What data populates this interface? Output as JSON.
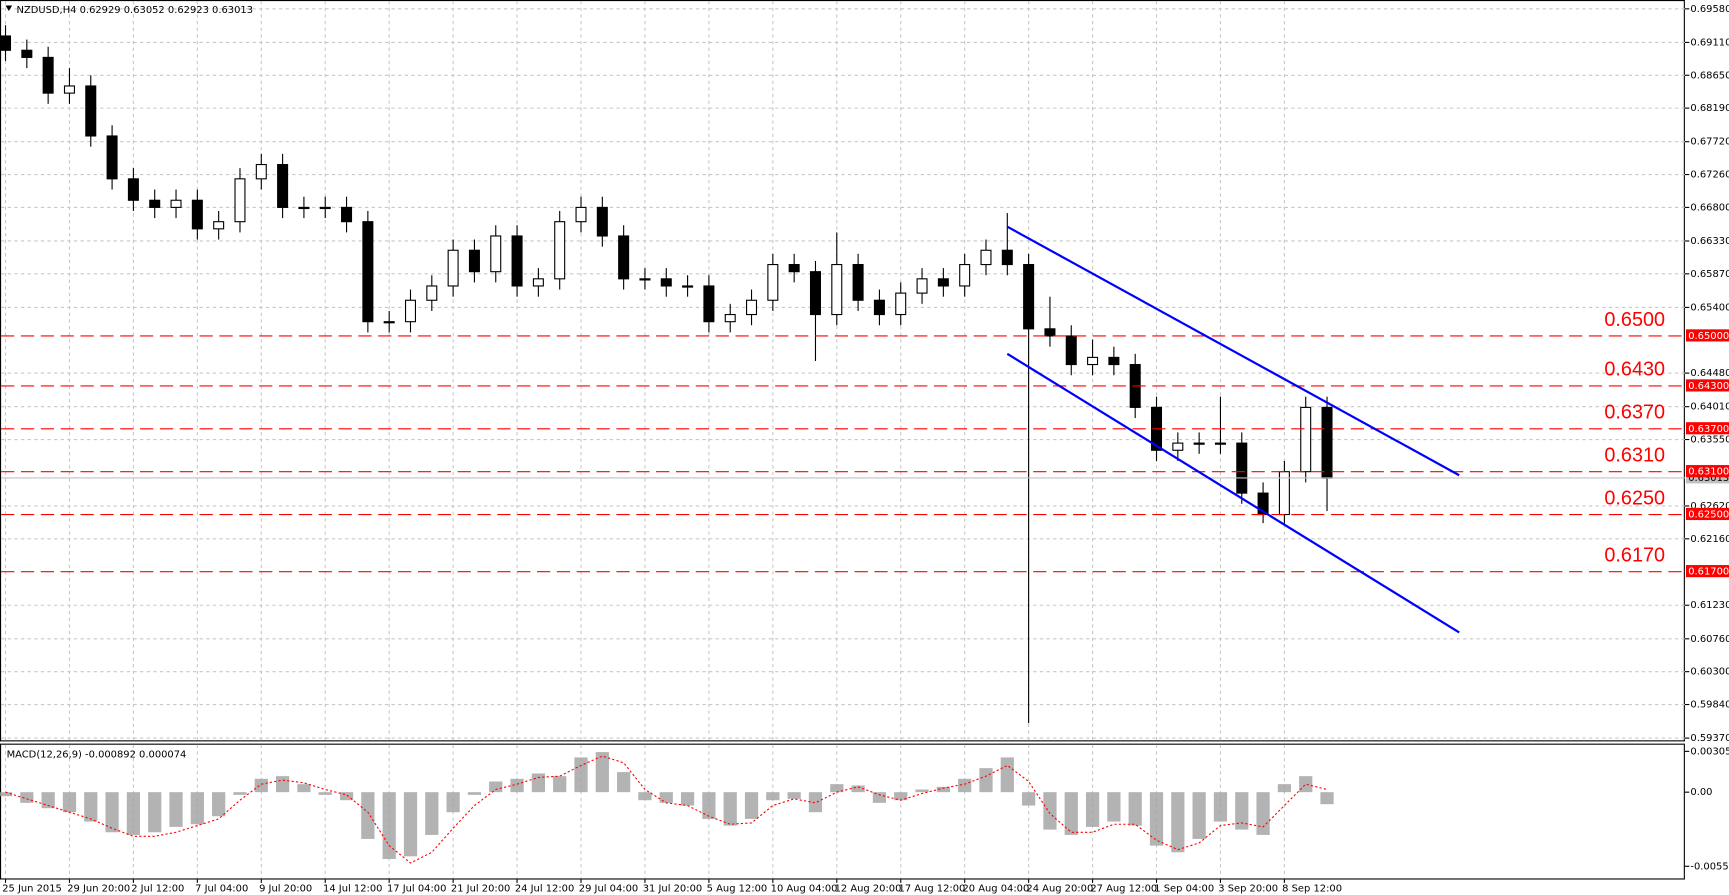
{
  "chart_data": [
    {
      "type": "candlestick",
      "title": "NZDUSD,H4  0.62929 0.63052 0.62923 0.63013",
      "categories": [
        "25 Jun 2015",
        null,
        null,
        "29 Jun 20:00",
        null,
        null,
        "2 Jul 12:00",
        null,
        null,
        "7 Jul 04:00",
        null,
        null,
        "9 Jul 20:00",
        null,
        null,
        "14 Jul 12:00",
        null,
        null,
        "17 Jul 04:00",
        null,
        null,
        "21 Jul 20:00",
        null,
        null,
        "24 Jul 12:00",
        null,
        null,
        "29 Jul 04:00",
        null,
        null,
        "31 Jul 20:00",
        null,
        null,
        "5 Aug 12:00",
        null,
        null,
        "10 Aug 04:00",
        null,
        null,
        "12 Aug 20:00",
        null,
        null,
        "17 Aug 12:00",
        null,
        null,
        "20 Aug 04:00",
        null,
        null,
        "24 Aug 20:00",
        null,
        null,
        "27 Aug 12:00",
        null,
        null,
        "1 Sep 04:00",
        null,
        null,
        "3 Sep 20:00",
        null,
        null,
        "8 Sep 12:00",
        null,
        null
      ],
      "candles": [
        [
          0.692,
          0.6935,
          0.6885,
          0.69
        ],
        [
          0.69,
          0.6915,
          0.6875,
          0.689
        ],
        [
          0.689,
          0.6905,
          0.6825,
          0.684
        ],
        [
          0.684,
          0.6875,
          0.6825,
          0.685
        ],
        [
          0.685,
          0.6865,
          0.6765,
          0.678
        ],
        [
          0.678,
          0.6795,
          0.6705,
          0.672
        ],
        [
          0.672,
          0.6735,
          0.6675,
          0.669
        ],
        [
          0.669,
          0.6705,
          0.6665,
          0.668
        ],
        [
          0.668,
          0.6705,
          0.6665,
          0.669
        ],
        [
          0.669,
          0.6705,
          0.6635,
          0.665
        ],
        [
          0.665,
          0.6675,
          0.6635,
          0.666
        ],
        [
          0.666,
          0.6735,
          0.6645,
          0.672
        ],
        [
          0.672,
          0.6755,
          0.6705,
          0.674
        ],
        [
          0.674,
          0.6755,
          0.6665,
          0.668
        ],
        [
          0.668,
          0.6695,
          0.6665,
          0.668
        ],
        [
          0.668,
          0.6695,
          0.6665,
          0.668
        ],
        [
          0.668,
          0.6695,
          0.6645,
          0.666
        ],
        [
          0.666,
          0.6675,
          0.6505,
          0.652
        ],
        [
          0.652,
          0.6535,
          0.6505,
          0.652
        ],
        [
          0.652,
          0.6565,
          0.6505,
          0.655
        ],
        [
          0.655,
          0.6585,
          0.6535,
          0.657
        ],
        [
          0.657,
          0.6635,
          0.6555,
          0.662
        ],
        [
          0.662,
          0.6635,
          0.6575,
          0.659
        ],
        [
          0.659,
          0.6655,
          0.6575,
          0.664
        ],
        [
          0.664,
          0.6655,
          0.6555,
          0.657
        ],
        [
          0.657,
          0.6595,
          0.6555,
          0.658
        ],
        [
          0.658,
          0.6675,
          0.6565,
          0.666
        ],
        [
          0.666,
          0.6695,
          0.6645,
          0.668
        ],
        [
          0.668,
          0.6695,
          0.6625,
          0.664
        ],
        [
          0.664,
          0.6655,
          0.6565,
          0.658
        ],
        [
          0.658,
          0.6595,
          0.6565,
          0.658
        ],
        [
          0.658,
          0.6595,
          0.6555,
          0.657
        ],
        [
          0.657,
          0.6585,
          0.6555,
          0.657
        ],
        [
          0.657,
          0.6585,
          0.6505,
          0.652
        ],
        [
          0.652,
          0.6545,
          0.6505,
          0.653
        ],
        [
          0.653,
          0.6565,
          0.6515,
          0.655
        ],
        [
          0.655,
          0.6615,
          0.6535,
          0.66
        ],
        [
          0.66,
          0.6615,
          0.6575,
          0.659
        ],
        [
          0.659,
          0.6605,
          0.6465,
          0.653
        ],
        [
          0.653,
          0.6645,
          0.6515,
          0.66
        ],
        [
          0.66,
          0.6615,
          0.6535,
          0.655
        ],
        [
          0.655,
          0.6565,
          0.6515,
          0.653
        ],
        [
          0.653,
          0.6575,
          0.6515,
          0.656
        ],
        [
          0.656,
          0.6595,
          0.6545,
          0.658
        ],
        [
          0.658,
          0.6595,
          0.6555,
          0.657
        ],
        [
          0.657,
          0.6615,
          0.6555,
          0.66
        ],
        [
          0.66,
          0.6635,
          0.6585,
          0.662
        ],
        [
          0.662,
          0.6672,
          0.6585,
          0.66
        ],
        [
          0.66,
          0.6615,
          0.5958,
          0.651
        ],
        [
          0.651,
          0.6555,
          0.6485,
          0.65
        ],
        [
          0.65,
          0.6515,
          0.6445,
          0.646
        ],
        [
          0.646,
          0.6495,
          0.6445,
          0.647
        ],
        [
          0.647,
          0.6485,
          0.6445,
          0.646
        ],
        [
          0.646,
          0.6475,
          0.6385,
          0.64
        ],
        [
          0.64,
          0.6415,
          0.6325,
          0.634
        ],
        [
          0.634,
          0.6365,
          0.6325,
          0.635
        ],
        [
          0.635,
          0.6365,
          0.6335,
          0.635
        ],
        [
          0.635,
          0.6415,
          0.6335,
          0.635
        ],
        [
          0.635,
          0.6365,
          0.6265,
          0.628
        ],
        [
          0.628,
          0.6295,
          0.6238,
          0.625
        ],
        [
          0.625,
          0.6325,
          0.6235,
          0.631
        ],
        [
          0.631,
          0.6415,
          0.6295,
          0.64
        ],
        [
          0.64,
          0.6415,
          0.6255,
          0.6301
        ]
      ],
      "ylim": [
        0.5937,
        0.6958
      ],
      "yticks": [
        {
          "value": 0.6958,
          "label": "0.69580"
        },
        {
          "value": 0.6911,
          "label": "0.69110"
        },
        {
          "value": 0.6865,
          "label": "0.68650"
        },
        {
          "value": 0.6819,
          "label": "0.68190"
        },
        {
          "value": 0.6772,
          "label": "0.67720"
        },
        {
          "value": 0.6726,
          "label": "0.67260"
        },
        {
          "value": 0.668,
          "label": "0.66800"
        },
        {
          "value": 0.6633,
          "label": "0.66330"
        },
        {
          "value": 0.6587,
          "label": "0.65870"
        },
        {
          "value": 0.654,
          "label": "0.65400"
        },
        {
          "value": 0.6448,
          "label": "0.64480"
        },
        {
          "value": 0.6401,
          "label": "0.64010"
        },
        {
          "value": 0.6355,
          "label": "0.63550"
        },
        {
          "value": 0.6262,
          "label": "0.62620"
        },
        {
          "value": 0.6216,
          "label": "0.62160"
        },
        {
          "value": 0.6123,
          "label": "0.61230"
        },
        {
          "value": 0.6076,
          "label": "0.60760"
        },
        {
          "value": 0.603,
          "label": "0.60300"
        },
        {
          "value": 0.5984,
          "label": "0.59840"
        },
        {
          "value": 0.5937,
          "label": "0.59370"
        }
      ],
      "grid": true,
      "levels": [
        {
          "value": 0.65,
          "label": "0.6500",
          "tag": "0.65000"
        },
        {
          "value": 0.643,
          "label": "0.6430",
          "tag": "0.64300"
        },
        {
          "value": 0.637,
          "label": "0.6370",
          "tag": "0.63700"
        },
        {
          "value": 0.631,
          "label": "0.6310",
          "tag": "0.63100"
        },
        {
          "value": 0.625,
          "label": "0.6250",
          "tag": "0.62500"
        },
        {
          "value": 0.617,
          "label": "0.6170",
          "tag": "0.61700"
        }
      ],
      "level_color": "#ff0000",
      "current_price": {
        "value": 0.63013,
        "label": "0.63013"
      },
      "channel": [
        {
          "x": [
            47,
            68.2
          ],
          "y": [
            0.6653,
            0.6305
          ]
        },
        {
          "x": [
            47,
            68.2
          ],
          "y": [
            0.6475,
            0.6085
          ]
        }
      ],
      "channel_color": "#0000ff"
    },
    {
      "type": "macd",
      "title": "MACD(12,26,9) -0.000892 0.000074",
      "macd": [
        -0.0003,
        -0.0008,
        -0.0012,
        -0.0015,
        -0.0022,
        -0.003,
        -0.0032,
        -0.003,
        -0.0026,
        -0.0024,
        -0.0018,
        -0.0002,
        0.001,
        0.0012,
        0.0006,
        -0.0002,
        -0.0006,
        -0.0035,
        -0.005,
        -0.0048,
        -0.0032,
        -0.0015,
        -0.0002,
        0.0008,
        0.001,
        0.0014,
        0.0012,
        0.0026,
        0.003,
        0.0015,
        -0.0006,
        -0.0008,
        -0.001,
        -0.002,
        -0.0025,
        -0.002,
        -0.0006,
        -0.0005,
        -0.0015,
        0.0006,
        0.0005,
        -0.0008,
        -0.0006,
        0.0002,
        0.0004,
        0.001,
        0.0018,
        0.0026,
        -0.001,
        -0.0028,
        -0.0032,
        -0.0026,
        -0.0022,
        -0.0025,
        -0.004,
        -0.0045,
        -0.0035,
        -0.0022,
        -0.0028,
        -0.0032,
        0.0006,
        0.0012,
        -0.0009
      ],
      "signal": [
        0,
        -0.0005,
        -0.001,
        -0.0015,
        -0.002,
        -0.0027,
        -0.0033,
        -0.0033,
        -0.003,
        -0.0025,
        -0.002,
        -0.0006,
        0.0006,
        0.0009,
        0.0007,
        0.0002,
        -0.0002,
        -0.0015,
        -0.004,
        -0.0053,
        -0.0045,
        -0.0027,
        -0.001,
        0.0002,
        0.0006,
        0.0011,
        0.0012,
        0.002,
        0.0027,
        0.0022,
        0.0002,
        -0.0008,
        -0.001,
        -0.0018,
        -0.0024,
        -0.0023,
        -0.001,
        -0.0005,
        -0.0008,
        0,
        0.0004,
        -0.0002,
        -0.0006,
        -0.0001,
        0.0003,
        0.0006,
        0.0012,
        0.002,
        0.0008,
        -0.0016,
        -0.003,
        -0.003,
        -0.0024,
        -0.0024,
        -0.0036,
        -0.0043,
        -0.0038,
        -0.0025,
        -0.0023,
        -0.0026,
        -0.001,
        0.0006,
        0.0002
      ],
      "macd_color": "#a0a0a0",
      "signal_color": "#ff0000",
      "ylim": [
        -0.005545,
        0.003054
      ],
      "yticks": [
        {
          "value": 0.003054,
          "label": "0.003054"
        },
        {
          "value": 0,
          "label": "0.00"
        },
        {
          "value": -0.005545,
          "label": "-0.00554"
        }
      ]
    }
  ]
}
